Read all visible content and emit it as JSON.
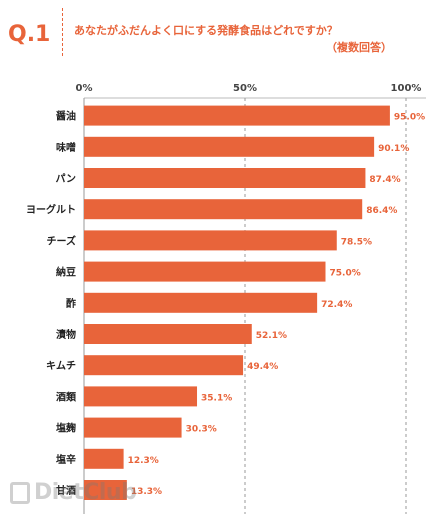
{
  "header": {
    "qnum": "Q.1",
    "title": "あなたがふだんよく口にする発酵食品はどれですか？",
    "subtitle": "（複数回答）"
  },
  "watermark": "DietClub",
  "colors": {
    "bar": "#e8643a",
    "accent": "#e8643a"
  },
  "chart_data": {
    "type": "bar",
    "orientation": "horizontal",
    "categories": [
      "醤油",
      "味噌",
      "パン",
      "ヨーグルト",
      "チーズ",
      "納豆",
      "酢",
      "漬物",
      "キムチ",
      "酒類",
      "塩麹",
      "塩辛",
      "甘酒"
    ],
    "values": [
      95.0,
      90.1,
      87.4,
      86.4,
      78.5,
      75.0,
      72.4,
      52.1,
      49.4,
      35.1,
      30.3,
      12.3,
      13.3
    ],
    "value_labels": [
      "95.0%",
      "90.1%",
      "87.4%",
      "86.4%",
      "78.5%",
      "75.0%",
      "72.4%",
      "52.1%",
      "49.4%",
      "35.1%",
      "30.3%",
      "12.3%",
      "13.3%"
    ],
    "xlim": [
      0,
      100
    ],
    "ticks": [
      0,
      50,
      100
    ],
    "tick_labels": [
      "0%",
      "50%",
      "100%"
    ],
    "grid": true
  }
}
